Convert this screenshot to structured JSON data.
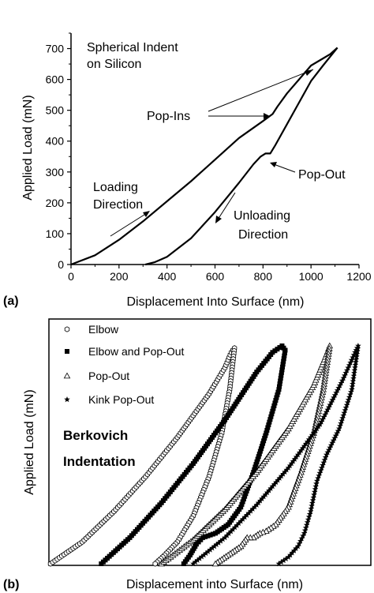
{
  "chart_data": [
    {
      "type": "line",
      "panel_label": "(a)",
      "xlabel": "Displacement Into Surface (nm)",
      "ylabel": "Applied Load (mN)",
      "xlim": [
        0,
        1200
      ],
      "ylim": [
        0,
        750
      ],
      "xticks": [
        0,
        200,
        400,
        600,
        800,
        1000,
        1200
      ],
      "yticks": [
        0,
        100,
        200,
        300,
        400,
        500,
        600,
        700
      ],
      "grid": false,
      "series": [
        {
          "x": [
            0,
            100,
            200,
            300,
            400,
            500,
            600,
            700,
            800,
            840,
            860,
            900,
            950,
            1000,
            1050,
            1080,
            1110
          ],
          "y": [
            0,
            30,
            80,
            140,
            205,
            270,
            340,
            410,
            465,
            488,
            512,
            555,
            600,
            645,
            668,
            682,
            703
          ]
        },
        {
          "x": [
            1110,
            1050,
            1000,
            950,
            900,
            850,
            830,
            810,
            790,
            760,
            700,
            600,
            500,
            400,
            350,
            310
          ],
          "y": [
            703,
            645,
            595,
            525,
            455,
            385,
            360,
            360,
            350,
            325,
            265,
            170,
            85,
            25,
            8,
            0
          ]
        }
      ],
      "annotations": {
        "title_line1": "Spherical Indent",
        "title_line2": "on Silicon",
        "pop_ins": "Pop-Ins",
        "pop_out": "Pop-Out",
        "loading_line1": "Loading",
        "loading_line2": "Direction",
        "unloading_line1": "Unloading",
        "unloading_line2": "Direction"
      }
    },
    {
      "type": "scatter",
      "panel_label": "(b)",
      "xlabel": "Displacement into Surface (nm)",
      "ylabel": "Applied Load (mN)",
      "xlim": [
        0,
        1
      ],
      "ylim": [
        0,
        1
      ],
      "grid": false,
      "legend_position": "top-left",
      "series": [
        {
          "name": "Elbow",
          "marker": "hexagon-open",
          "x": [
            0.0,
            0.1,
            0.2,
            0.3,
            0.4,
            0.5,
            0.55,
            0.57,
            0.58,
            0.565,
            0.54,
            0.5,
            0.45,
            0.4,
            0.36,
            0.33
          ],
          "y": [
            0.0,
            0.1,
            0.24,
            0.4,
            0.58,
            0.78,
            0.9,
            0.97,
            0.99,
            0.8,
            0.6,
            0.4,
            0.22,
            0.1,
            0.04,
            0.0
          ]
        },
        {
          "name": "Elbow and Pop-Out",
          "marker": "square-filled",
          "x": [
            0.16,
            0.25,
            0.35,
            0.45,
            0.55,
            0.65,
            0.7,
            0.73,
            0.74,
            0.72,
            0.68,
            0.64,
            0.6,
            0.56,
            0.52,
            0.48,
            0.46,
            0.44,
            0.42
          ],
          "y": [
            0.0,
            0.12,
            0.28,
            0.46,
            0.66,
            0.88,
            0.97,
            1.0,
            0.98,
            0.8,
            0.6,
            0.42,
            0.26,
            0.18,
            0.14,
            0.12,
            0.09,
            0.04,
            0.0
          ]
        },
        {
          "name": "Pop-Out",
          "marker": "triangle-open",
          "x": [
            0.35,
            0.45,
            0.55,
            0.65,
            0.75,
            0.83,
            0.87,
            0.88,
            0.86,
            0.83,
            0.79,
            0.75,
            0.71,
            0.68,
            0.66,
            0.64,
            0.62,
            0.6,
            0.56,
            0.52
          ],
          "y": [
            0.0,
            0.11,
            0.25,
            0.42,
            0.62,
            0.82,
            0.96,
            1.0,
            0.8,
            0.6,
            0.42,
            0.26,
            0.18,
            0.15,
            0.14,
            0.12,
            0.12,
            0.08,
            0.04,
            0.0
          ]
        },
        {
          "name": "Kink Pop-Out",
          "marker": "star-filled",
          "x": [
            0.45,
            0.55,
            0.65,
            0.75,
            0.85,
            0.92,
            0.96,
            0.97,
            0.95,
            0.91,
            0.87,
            0.84,
            0.82,
            0.8,
            0.78,
            0.75,
            0.72
          ],
          "y": [
            0.0,
            0.12,
            0.27,
            0.44,
            0.64,
            0.84,
            0.97,
            1.0,
            0.8,
            0.62,
            0.5,
            0.38,
            0.24,
            0.14,
            0.08,
            0.03,
            0.0
          ]
        }
      ],
      "annotations": {
        "line1": "Berkovich",
        "line2": "Indentation"
      }
    }
  ]
}
